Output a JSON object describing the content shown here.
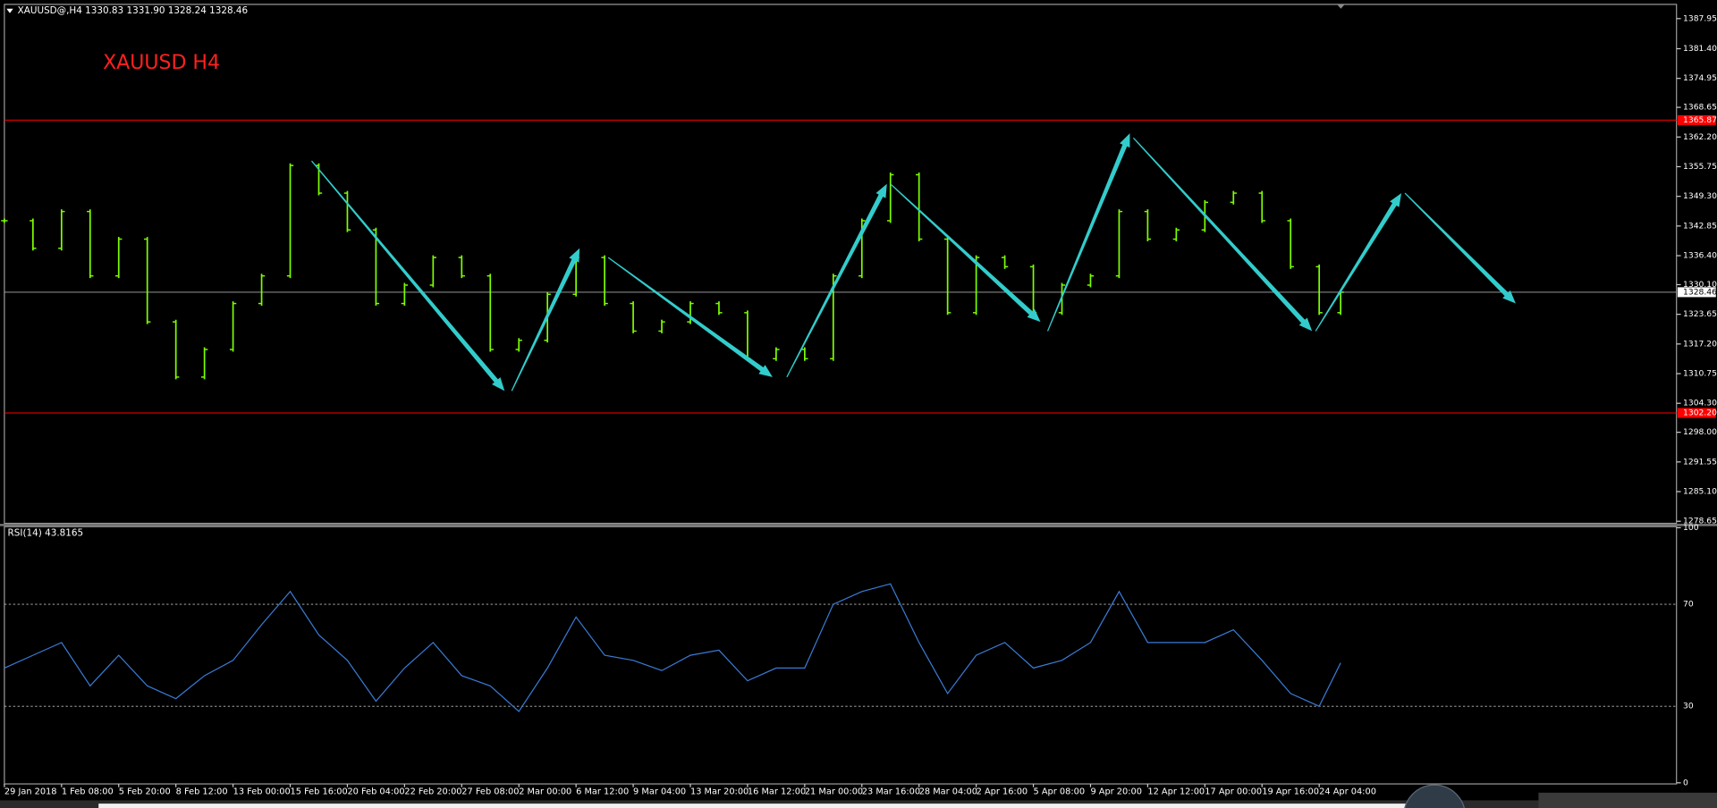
{
  "chart_data": [
    {
      "type": "ohlc",
      "header": "XAUUSD@,H4  1330.83 1331.90 1328.24 1328.46",
      "title": "XAUUSD  H4",
      "color": "#7cfc00",
      "x": [
        0,
        8,
        16,
        24,
        32,
        40,
        48,
        56,
        64,
        72,
        80,
        88,
        96,
        104,
        112,
        120,
        128,
        136,
        144,
        152,
        160,
        168,
        176,
        184,
        192,
        200,
        208,
        216,
        224,
        232,
        240,
        248,
        256,
        264,
        272,
        280,
        288,
        296,
        304,
        312,
        320,
        328,
        336,
        344,
        352,
        360,
        368,
        374
      ],
      "values": [
        1344,
        1338,
        1346,
        1332,
        1340,
        1322,
        1310,
        1316,
        1326,
        1332,
        1356,
        1350,
        1342,
        1326,
        1330,
        1336,
        1332,
        1316,
        1318,
        1328,
        1336,
        1326,
        1320,
        1322,
        1326,
        1324,
        1314,
        1316,
        1314,
        1332,
        1344,
        1354,
        1340,
        1324,
        1336,
        1334,
        1324,
        1330,
        1332,
        1346,
        1340,
        1342,
        1348,
        1350,
        1344,
        1334,
        1324,
        1328.46
      ],
      "xlim": [
        0,
        468
      ],
      "ylim": [
        1278.2,
        1390.8
      ],
      "yticks": [
        {
          "value": 1387.95,
          "label": "1387.95"
        },
        {
          "value": 1381.4,
          "label": "1381.40"
        },
        {
          "value": 1374.95,
          "label": "1374.95"
        },
        {
          "value": 1368.65,
          "label": "1368.65"
        },
        {
          "value": 1362.2,
          "label": "1362.20"
        },
        {
          "value": 1355.75,
          "label": "1355.75"
        },
        {
          "value": 1349.3,
          "label": "1349.30"
        },
        {
          "value": 1342.85,
          "label": "1342.85"
        },
        {
          "value": 1336.4,
          "label": "1336.40"
        },
        {
          "value": 1330.1,
          "label": "1330.10"
        },
        {
          "value": 1323.65,
          "label": "1323.65"
        },
        {
          "value": 1317.2,
          "label": "1317.20"
        },
        {
          "value": 1310.75,
          "label": "1310.75"
        },
        {
          "value": 1304.3,
          "label": "1304.30"
        },
        {
          "value": 1298,
          "label": "1298.00"
        },
        {
          "value": 1291.55,
          "label": "1291.55"
        },
        {
          "value": 1285.1,
          "label": "1285.10"
        },
        {
          "value": 1278.65,
          "label": "1278.65"
        }
      ],
      "xticks": [
        {
          "value": 0,
          "label": "29 Jan 2018"
        },
        {
          "value": 16,
          "label": "1 Feb 08:00"
        },
        {
          "value": 32,
          "label": "5 Feb 20:00"
        },
        {
          "value": 48,
          "label": "8 Feb 12:00"
        },
        {
          "value": 64,
          "label": "13 Feb 00:00"
        },
        {
          "value": 80,
          "label": "15 Feb 16:00"
        },
        {
          "value": 96,
          "label": "20 Feb 04:00"
        },
        {
          "value": 112,
          "label": "22 Feb 20:00"
        },
        {
          "value": 128,
          "label": "27 Feb 08:00"
        },
        {
          "value": 144,
          "label": "2 Mar 00:00"
        },
        {
          "value": 160,
          "label": "6 Mar 12:00"
        },
        {
          "value": 176,
          "label": "9 Mar 04:00"
        },
        {
          "value": 192,
          "label": "13 Mar 20:00"
        },
        {
          "value": 208,
          "label": "16 Mar 12:00"
        },
        {
          "value": 224,
          "label": "21 Mar 00:00"
        },
        {
          "value": 240,
          "label": "23 Mar 16:00"
        },
        {
          "value": 256,
          "label": "28 Mar 04:00"
        },
        {
          "value": 272,
          "label": "2 Apr 16:00"
        },
        {
          "value": 288,
          "label": "5 Apr 08:00"
        },
        {
          "value": 304,
          "label": "9 Apr 20:00"
        },
        {
          "value": 320,
          "label": "12 Apr 12:00"
        },
        {
          "value": 336,
          "label": "17 Apr 00:00"
        },
        {
          "value": 352,
          "label": "19 Apr 16:00"
        },
        {
          "value": 368,
          "label": "24 Apr 04:00"
        }
      ],
      "levels": [
        {
          "value": 1365.87,
          "label": "1365.87",
          "color": "#ff0000"
        },
        {
          "value": 1302.2,
          "label": "1302.20",
          "color": "#ff0000"
        }
      ],
      "current": 1328.46,
      "arrow_color": "#33cccc",
      "arrows": [
        {
          "from": [
            86,
            1357
          ],
          "to": [
            140,
            1307
          ]
        },
        {
          "from": [
            142,
            1307
          ],
          "to": [
            161,
            1338
          ]
        },
        {
          "from": [
            169,
            1336
          ],
          "to": [
            215,
            1310
          ]
        },
        {
          "from": [
            219,
            1310
          ],
          "to": [
            247,
            1352
          ]
        },
        {
          "from": [
            248,
            1352
          ],
          "to": [
            290,
            1322
          ]
        },
        {
          "from": [
            292,
            1320
          ],
          "to": [
            315,
            1363
          ]
        },
        {
          "from": [
            316,
            1362
          ],
          "to": [
            366,
            1320
          ]
        },
        {
          "from": [
            367,
            1320
          ],
          "to": [
            391,
            1350
          ]
        },
        {
          "from": [
            392,
            1350
          ],
          "to": [
            423,
            1326
          ]
        }
      ]
    },
    {
      "type": "line",
      "title": "RSI(14) 43.8165",
      "color": "#3a7bd5",
      "values": [
        45,
        50,
        55,
        38,
        50,
        38,
        33,
        42,
        48,
        62,
        75,
        58,
        48,
        32,
        45,
        55,
        42,
        38,
        28,
        45,
        65,
        50,
        48,
        44,
        50,
        52,
        40,
        45,
        45,
        70,
        75,
        78,
        55,
        35,
        50,
        55,
        45,
        48,
        55,
        75,
        55,
        55,
        55,
        60,
        48,
        35,
        30,
        47
      ],
      "ylim": [
        0,
        100
      ],
      "yticks": [
        0,
        30,
        70,
        100
      ]
    }
  ]
}
